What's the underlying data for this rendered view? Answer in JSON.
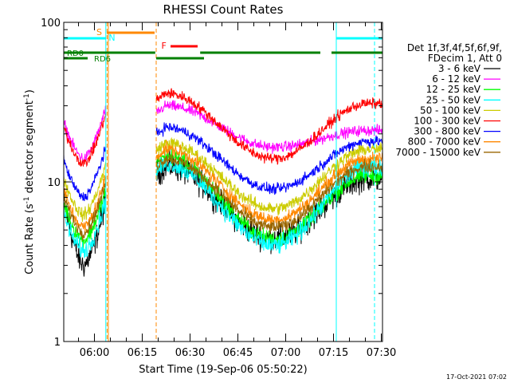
{
  "chart_data": {
    "type": "line",
    "title": "RHESSI Count Rates",
    "xlabel": "Start Time (19-Sep-06 05:50:22)",
    "ylabel": "Count Rate (s⁻¹ detector segment⁻¹)",
    "ylabel_parts": {
      "a": "Count Rate (s",
      "sup1": "-1",
      "b": " detector segment",
      "sup2": "-1",
      "c": ")"
    },
    "yscale": "log",
    "ylim": [
      1,
      100
    ],
    "xlim_minutes": [
      0,
      100
    ],
    "y_ticks": [
      {
        "v": 1,
        "label": "1"
      },
      {
        "v": 10,
        "label": "10"
      },
      {
        "v": 100,
        "label": "100"
      }
    ],
    "x_ticks": [
      {
        "m": 9.63,
        "label": "06:00"
      },
      {
        "m": 24.63,
        "label": "06:15"
      },
      {
        "m": 39.63,
        "label": "06:30"
      },
      {
        "m": 54.63,
        "label": "06:45"
      },
      {
        "m": 69.63,
        "label": "07:00"
      },
      {
        "m": 84.63,
        "label": "07:15"
      },
      {
        "m": 99.63,
        "label": "07:30"
      }
    ],
    "legend_header": [
      "Det 1f,3f,4f,5f,6f,9f,",
      "FDecim 1, Att 0"
    ],
    "series": [
      {
        "name": "3 - 6 keV",
        "color": "#000000",
        "base": 3.0,
        "high": 12.5,
        "low": 4.4,
        "end": 10.5,
        "noise": 0.12
      },
      {
        "name": "6 - 12 keV",
        "color": "#ff00ff",
        "base": 14.0,
        "high": 30.0,
        "low": 16.5,
        "end": 21.0,
        "noise": 0.05
      },
      {
        "name": "12 - 25 keV",
        "color": "#00ff00",
        "base": 4.3,
        "high": 14.5,
        "low": 4.4,
        "end": 11.0,
        "noise": 0.08
      },
      {
        "name": "25 - 50 keV",
        "color": "#00ffff",
        "base": 3.7,
        "high": 13.0,
        "low": 4.0,
        "end": 12.5,
        "noise": 0.09
      },
      {
        "name": "50 - 100 keV",
        "color": "#cccc00",
        "base": 6.2,
        "high": 17.5,
        "low": 6.8,
        "end": 16.0,
        "noise": 0.06
      },
      {
        "name": "100 - 300 keV",
        "color": "#ff0000",
        "base": 13.0,
        "high": 36.0,
        "low": 14.0,
        "end": 31.0,
        "noise": 0.05
      },
      {
        "name": "300 - 800 keV",
        "color": "#0000ff",
        "base": 8.0,
        "high": 22.0,
        "low": 9.0,
        "end": 18.0,
        "noise": 0.05
      },
      {
        "name": "800 - 7000 keV",
        "color": "#ff8800",
        "base": 5.2,
        "high": 16.0,
        "low": 5.8,
        "end": 14.0,
        "noise": 0.06
      },
      {
        "name": "7000 - 15000 keV",
        "color": "#996600",
        "base": 4.8,
        "high": 14.0,
        "low": 5.2,
        "end": 12.5,
        "noise": 0.06
      }
    ],
    "flags": {
      "saa": {
        "label": "S",
        "color": "#ff8800",
        "y": 88,
        "start": 13.5,
        "end": 28.5
      },
      "night": {
        "label": "N",
        "color": "#00ffff",
        "y": 78,
        "segments": [
          [
            0,
            13.2
          ],
          [
            85.5,
            100
          ]
        ]
      },
      "flare": {
        "label": "F",
        "color": "#ff0000",
        "y": 72,
        "start": 30.5,
        "end": 42
      }
    },
    "rd_flags": [
      {
        "label": "RD0",
        "color": "#008000",
        "y": 64,
        "segments": [
          [
            0,
            28.7
          ],
          [
            42.8,
            80.5
          ],
          [
            84,
            100
          ]
        ]
      },
      {
        "label": "RD6",
        "color": "#008000",
        "y": 58,
        "segments": [
          [
            0,
            7.5
          ],
          [
            29,
            44
          ]
        ]
      }
    ],
    "vlines": [
      {
        "m": 13.2,
        "color": "#00ffff",
        "style": "solid"
      },
      {
        "m": 13.6,
        "color": "#ff8800",
        "style": "dashed"
      },
      {
        "m": 14.0,
        "color": "#ff8800",
        "style": "solid"
      },
      {
        "m": 29.0,
        "color": "#ff8800",
        "style": "dashed"
      },
      {
        "m": 85.5,
        "color": "#00ffff",
        "style": "solid"
      },
      {
        "m": 97.5,
        "color": "#00ffff",
        "style": "dashed"
      }
    ]
  },
  "footer": {
    "timestamp": "17-Oct-2021 07:02"
  }
}
